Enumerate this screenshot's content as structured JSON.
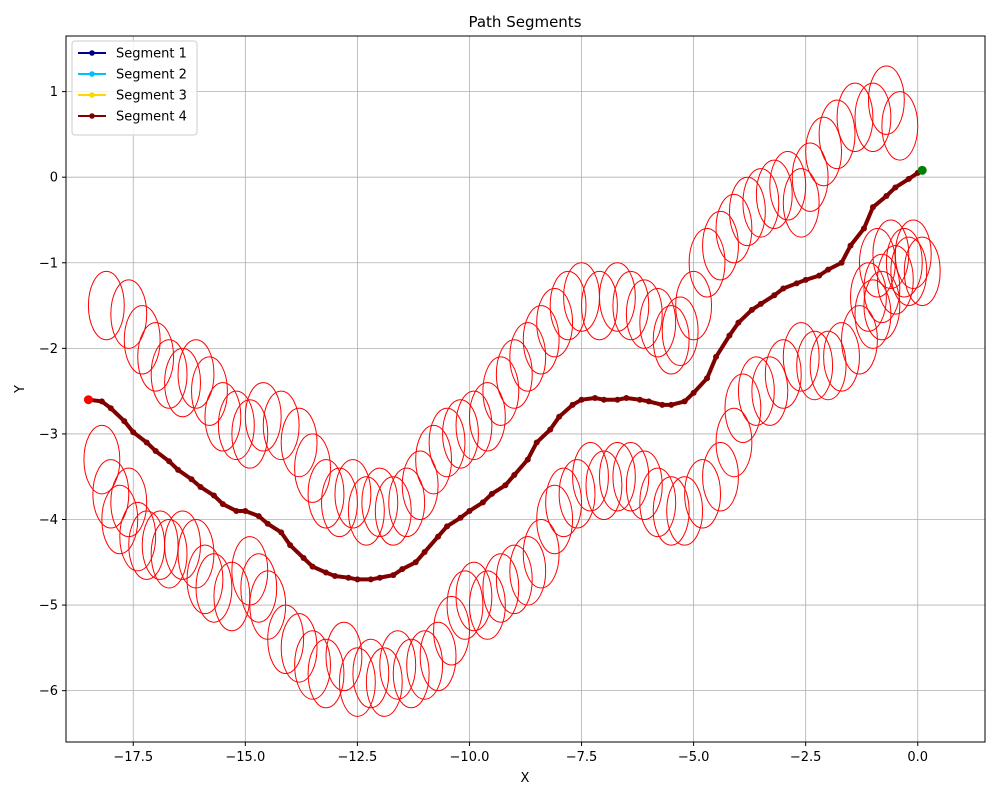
{
  "chart_data": {
    "type": "line",
    "title": "Path Segments",
    "xlabel": "X",
    "ylabel": "Y",
    "xlim": [
      -19.0,
      1.5
    ],
    "ylim": [
      -6.6,
      1.65
    ],
    "x_ticks": [
      -17.5,
      -15.0,
      -12.5,
      -10.0,
      -7.5,
      -5.0,
      -2.5,
      0.0
    ],
    "x_tick_labels": [
      "−17.5",
      "−15.0",
      "−12.5",
      "−10.0",
      "−7.5",
      "−5.0",
      "−2.5",
      "0.0"
    ],
    "y_ticks": [
      1,
      0,
      -1,
      -2,
      -3,
      -4,
      -5,
      -6
    ],
    "y_tick_labels": [
      "1",
      "0",
      "−1",
      "−2",
      "−3",
      "−4",
      "−5",
      "−6"
    ],
    "grid": true,
    "legend_position": "top-left",
    "series": [
      {
        "name": "Segment 1",
        "color": "#00008b",
        "x": [],
        "y": []
      },
      {
        "name": "Segment 2",
        "color": "#00bfff",
        "x": [],
        "y": []
      },
      {
        "name": "Segment 3",
        "color": "#ffd700",
        "x": [],
        "y": []
      },
      {
        "name": "Segment 4",
        "color": "#800000",
        "x": [
          -18.5,
          -18.2,
          -18.0,
          -17.7,
          -17.5,
          -17.2,
          -17.0,
          -16.7,
          -16.5,
          -16.2,
          -16.0,
          -15.7,
          -15.5,
          -15.2,
          -15.0,
          -14.7,
          -14.5,
          -14.2,
          -14.0,
          -13.7,
          -13.5,
          -13.2,
          -13.0,
          -12.7,
          -12.5,
          -12.2,
          -12.0,
          -11.7,
          -11.5,
          -11.2,
          -11.0,
          -10.7,
          -10.5,
          -10.2,
          -10.0,
          -9.7,
          -9.5,
          -9.2,
          -9.0,
          -8.7,
          -8.5,
          -8.2,
          -8.0,
          -7.7,
          -7.5,
          -7.2,
          -7.0,
          -6.7,
          -6.5,
          -6.2,
          -6.0,
          -5.7,
          -5.5,
          -5.2,
          -5.0,
          -4.7,
          -4.5,
          -4.2,
          -4.0,
          -3.7,
          -3.5,
          -3.2,
          -3.0,
          -2.7,
          -2.5,
          -2.2,
          -2.0,
          -1.7,
          -1.5,
          -1.2,
          -1.0,
          -0.7,
          -0.5,
          -0.2,
          0.0,
          0.1
        ],
        "y": [
          -2.6,
          -2.62,
          -2.7,
          -2.85,
          -2.98,
          -3.1,
          -3.2,
          -3.32,
          -3.42,
          -3.53,
          -3.62,
          -3.72,
          -3.82,
          -3.9,
          -3.9,
          -3.96,
          -4.05,
          -4.15,
          -4.3,
          -4.45,
          -4.55,
          -4.62,
          -4.66,
          -4.68,
          -4.7,
          -4.7,
          -4.68,
          -4.65,
          -4.58,
          -4.5,
          -4.38,
          -4.2,
          -4.08,
          -3.98,
          -3.9,
          -3.8,
          -3.7,
          -3.6,
          -3.48,
          -3.3,
          -3.1,
          -2.95,
          -2.8,
          -2.66,
          -2.6,
          -2.58,
          -2.6,
          -2.6,
          -2.58,
          -2.6,
          -2.62,
          -2.66,
          -2.66,
          -2.62,
          -2.52,
          -2.35,
          -2.1,
          -1.85,
          -1.7,
          -1.55,
          -1.48,
          -1.38,
          -1.3,
          -1.24,
          -1.2,
          -1.15,
          -1.08,
          -1.0,
          -0.8,
          -0.6,
          -0.35,
          -0.22,
          -0.12,
          -0.02,
          0.05,
          0.08
        ]
      }
    ],
    "start_marker": {
      "x": -18.5,
      "y": -2.6,
      "color": "#ff0000"
    },
    "end_marker": {
      "x": 0.1,
      "y": 0.08,
      "color": "#008000"
    },
    "ellipses": {
      "color": "#ff0000",
      "width": 0.8,
      "height": 0.8,
      "centers": [
        [
          -18.2,
          -3.3
        ],
        [
          -18.0,
          -3.7
        ],
        [
          -17.8,
          -4.0
        ],
        [
          -17.6,
          -3.8
        ],
        [
          -17.4,
          -4.2
        ],
        [
          -17.2,
          -4.3
        ],
        [
          -16.9,
          -4.3
        ],
        [
          -16.7,
          -4.4
        ],
        [
          -16.4,
          -4.3
        ],
        [
          -16.1,
          -4.4
        ],
        [
          -15.9,
          -4.7
        ],
        [
          -15.7,
          -4.8
        ],
        [
          -15.3,
          -4.9
        ],
        [
          -14.9,
          -4.6
        ],
        [
          -14.7,
          -4.8
        ],
        [
          -14.5,
          -5.0
        ],
        [
          -14.1,
          -5.4
        ],
        [
          -13.8,
          -5.5
        ],
        [
          -13.5,
          -5.7
        ],
        [
          -13.2,
          -5.8
        ],
        [
          -12.8,
          -5.6
        ],
        [
          -12.5,
          -5.9
        ],
        [
          -12.2,
          -5.8
        ],
        [
          -11.9,
          -5.9
        ],
        [
          -11.6,
          -5.7
        ],
        [
          -11.3,
          -5.8
        ],
        [
          -11.0,
          -5.7
        ],
        [
          -10.7,
          -5.6
        ],
        [
          -10.4,
          -5.3
        ],
        [
          -10.1,
          -5.0
        ],
        [
          -9.9,
          -4.9
        ],
        [
          -9.6,
          -5.0
        ],
        [
          -9.3,
          -4.8
        ],
        [
          -9.0,
          -4.7
        ],
        [
          -8.7,
          -4.6
        ],
        [
          -8.4,
          -4.4
        ],
        [
          -8.1,
          -4.0
        ],
        [
          -7.9,
          -3.8
        ],
        [
          -7.6,
          -3.7
        ],
        [
          -7.3,
          -3.5
        ],
        [
          -7.0,
          -3.6
        ],
        [
          -6.7,
          -3.5
        ],
        [
          -6.4,
          -3.5
        ],
        [
          -6.1,
          -3.6
        ],
        [
          -5.8,
          -3.8
        ],
        [
          -5.5,
          -3.9
        ],
        [
          -5.2,
          -3.9
        ],
        [
          -4.8,
          -3.7
        ],
        [
          -4.4,
          -3.5
        ],
        [
          -4.1,
          -3.1
        ],
        [
          -3.9,
          -2.7
        ],
        [
          -3.6,
          -2.5
        ],
        [
          -3.3,
          -2.5
        ],
        [
          -3.0,
          -2.3
        ],
        [
          -2.6,
          -2.1
        ],
        [
          -2.3,
          -2.2
        ],
        [
          -2.0,
          -2.2
        ],
        [
          -1.7,
          -2.1
        ],
        [
          -1.3,
          -1.9
        ],
        [
          -1.0,
          -1.6
        ],
        [
          -0.8,
          -1.3
        ],
        [
          -0.5,
          -1.2
        ],
        [
          -0.2,
          -1.1
        ],
        [
          0.1,
          -1.1
        ],
        [
          -18.1,
          -1.5
        ],
        [
          -17.6,
          -1.6
        ],
        [
          -17.3,
          -1.9
        ],
        [
          -17.0,
          -2.1
        ],
        [
          -16.7,
          -2.3
        ],
        [
          -16.4,
          -2.4
        ],
        [
          -16.1,
          -2.3
        ],
        [
          -15.8,
          -2.5
        ],
        [
          -15.5,
          -2.8
        ],
        [
          -15.2,
          -2.9
        ],
        [
          -14.9,
          -3.0
        ],
        [
          -14.6,
          -2.8
        ],
        [
          -14.2,
          -2.9
        ],
        [
          -13.8,
          -3.1
        ],
        [
          -13.5,
          -3.4
        ],
        [
          -13.2,
          -3.7
        ],
        [
          -12.9,
          -3.8
        ],
        [
          -12.6,
          -3.7
        ],
        [
          -12.3,
          -3.9
        ],
        [
          -12.0,
          -3.8
        ],
        [
          -11.7,
          -3.9
        ],
        [
          -11.4,
          -3.8
        ],
        [
          -11.1,
          -3.6
        ],
        [
          -10.8,
          -3.3
        ],
        [
          -10.5,
          -3.1
        ],
        [
          -10.2,
          -3.0
        ],
        [
          -9.9,
          -2.9
        ],
        [
          -9.6,
          -2.8
        ],
        [
          -9.3,
          -2.5
        ],
        [
          -9.0,
          -2.3
        ],
        [
          -8.7,
          -2.1
        ],
        [
          -8.4,
          -1.9
        ],
        [
          -8.1,
          -1.7
        ],
        [
          -7.8,
          -1.5
        ],
        [
          -7.5,
          -1.4
        ],
        [
          -7.1,
          -1.5
        ],
        [
          -6.7,
          -1.4
        ],
        [
          -6.4,
          -1.5
        ],
        [
          -6.1,
          -1.6
        ],
        [
          -5.8,
          -1.7
        ],
        [
          -5.5,
          -1.9
        ],
        [
          -5.3,
          -1.8
        ],
        [
          -5.0,
          -1.5
        ],
        [
          -4.7,
          -1.0
        ],
        [
          -4.4,
          -0.8
        ],
        [
          -4.1,
          -0.6
        ],
        [
          -3.8,
          -0.4
        ],
        [
          -3.5,
          -0.3
        ],
        [
          -3.2,
          -0.2
        ],
        [
          -2.9,
          -0.1
        ],
        [
          -2.6,
          -0.3
        ],
        [
          -2.4,
          0.0
        ],
        [
          -2.1,
          0.3
        ],
        [
          -1.8,
          0.5
        ],
        [
          -1.4,
          0.7
        ],
        [
          -1.0,
          0.7
        ],
        [
          -0.7,
          0.9
        ],
        [
          -0.4,
          0.6
        ],
        [
          -0.9,
          -1.0
        ],
        [
          -0.6,
          -0.9
        ],
        [
          -0.3,
          -1.0
        ],
        [
          -0.1,
          -0.9
        ],
        [
          -1.1,
          -1.4
        ],
        [
          -0.8,
          -1.5
        ]
      ]
    }
  }
}
